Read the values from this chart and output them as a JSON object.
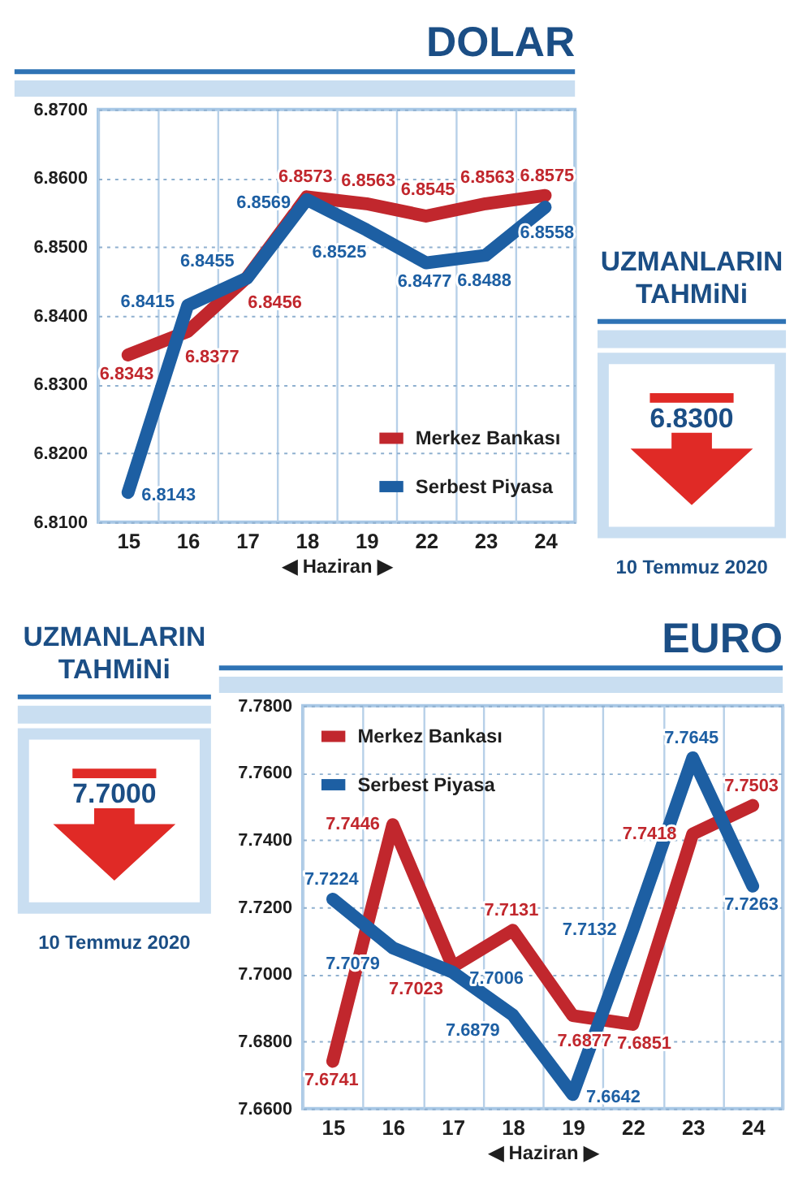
{
  "chart_data": [
    {
      "type": "line",
      "title": "DOLAR",
      "xlabel": "◀ Haziran ▶",
      "categories": [
        "15",
        "16",
        "17",
        "18",
        "19",
        "22",
        "23",
        "24"
      ],
      "series": [
        {
          "name": "Merkez Bankası",
          "color": "#c1272d",
          "values": [
            6.8343,
            6.8377,
            6.8456,
            6.8573,
            6.8563,
            6.8545,
            6.8563,
            6.8575
          ]
        },
        {
          "name": "Serbest Piyasa",
          "color": "#1d5fa3",
          "values": [
            6.8143,
            6.8415,
            6.8455,
            6.8569,
            6.8525,
            6.8477,
            6.8488,
            6.8558
          ]
        }
      ],
      "ylim": [
        6.81,
        6.87
      ],
      "yticks": [
        {
          "value": 6.81,
          "label": "6.8100"
        },
        {
          "value": 6.82,
          "label": "6.8200"
        },
        {
          "value": 6.83,
          "label": "6.8300"
        },
        {
          "value": 6.84,
          "label": "6.8400"
        },
        {
          "value": 6.85,
          "label": "6.8500"
        },
        {
          "value": 6.86,
          "label": "6.8600"
        },
        {
          "value": 6.87,
          "label": "6.8700"
        }
      ],
      "grid": true,
      "legend": "bottom right",
      "data_labels": true
    },
    {
      "type": "other",
      "title": "UZMANLARIN TAHMiNi",
      "annotations": [
        "6.8300",
        "10 Temmuz 2020"
      ]
    },
    {
      "type": "other",
      "title": "UZMANLARIN TAHMiNi",
      "annotations": [
        "7.7000",
        "10 Temmuz 2020"
      ]
    },
    {
      "type": "line",
      "title": "EURO",
      "xlabel": "◀ Haziran ▶",
      "categories": [
        "15",
        "16",
        "17",
        "18",
        "19",
        "22",
        "23",
        "24"
      ],
      "series": [
        {
          "name": "Merkez Bankası",
          "color": "#c1272d",
          "values": [
            7.6741,
            7.7446,
            7.7023,
            7.7131,
            7.6877,
            7.6851,
            7.7418,
            7.7503
          ]
        },
        {
          "name": "Serbest Piyasa",
          "color": "#1d5fa3",
          "values": [
            7.7224,
            7.7079,
            7.7006,
            7.6879,
            7.6642,
            7.7132,
            7.7645,
            7.7263
          ]
        }
      ],
      "ylim": [
        7.66,
        7.78
      ],
      "yticks": [
        {
          "value": 7.66,
          "label": "7.6600"
        },
        {
          "value": 7.68,
          "label": "7.6800"
        },
        {
          "value": 7.7,
          "label": "7.7000"
        },
        {
          "value": 7.72,
          "label": "7.7200"
        },
        {
          "value": 7.74,
          "label": "7.7400"
        },
        {
          "value": 7.76,
          "label": "7.7600"
        },
        {
          "value": 7.78,
          "label": "7.7800"
        }
      ],
      "grid": true,
      "legend": "top left",
      "data_labels": true
    }
  ]
}
